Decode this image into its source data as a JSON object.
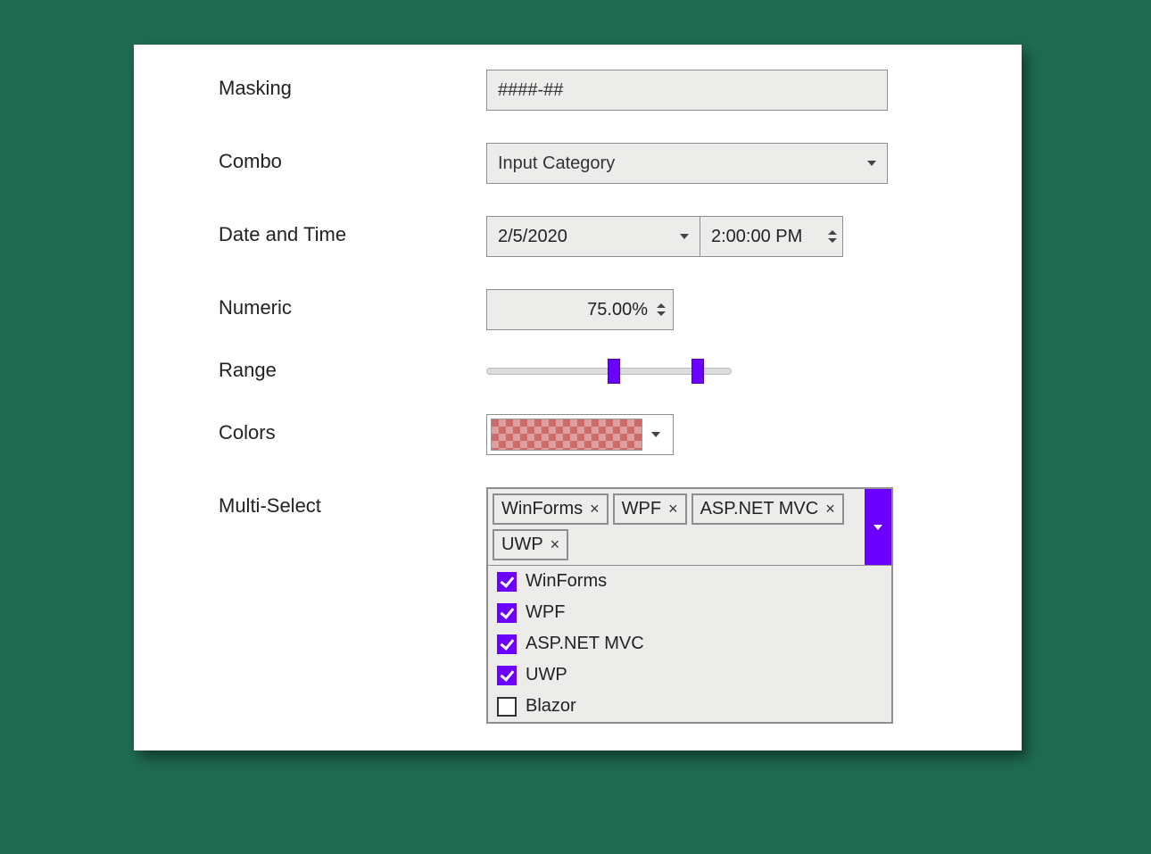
{
  "colors": {
    "accent": "#6a00ff",
    "panel_bg": "#ffffff",
    "page_bg": "#1f6b52",
    "input_bg": "#ececea",
    "border": "#8e8e8e",
    "swatch": "#cc6b6b"
  },
  "form": {
    "masking": {
      "label": "Masking",
      "value": "####-##"
    },
    "combo": {
      "label": "Combo",
      "selected": "Input Category"
    },
    "datetime": {
      "label": "Date and Time",
      "date": "2/5/2020",
      "time": "2:00:00 PM"
    },
    "numeric": {
      "label": "Numeric",
      "value": "75.00%"
    },
    "range": {
      "label": "Range",
      "track_width": 275,
      "thumb1_pct": 52,
      "thumb2_pct": 86
    },
    "colors_row": {
      "label": "Colors"
    },
    "multiselect": {
      "label": "Multi-Select",
      "tags": [
        "WinForms",
        "WPF",
        "ASP.NET MVC",
        "UWP"
      ],
      "options": [
        {
          "label": "WinForms",
          "checked": true
        },
        {
          "label": "WPF",
          "checked": true
        },
        {
          "label": "ASP.NET MVC",
          "checked": true
        },
        {
          "label": "UWP",
          "checked": true
        },
        {
          "label": "Blazor",
          "checked": false
        }
      ]
    }
  }
}
